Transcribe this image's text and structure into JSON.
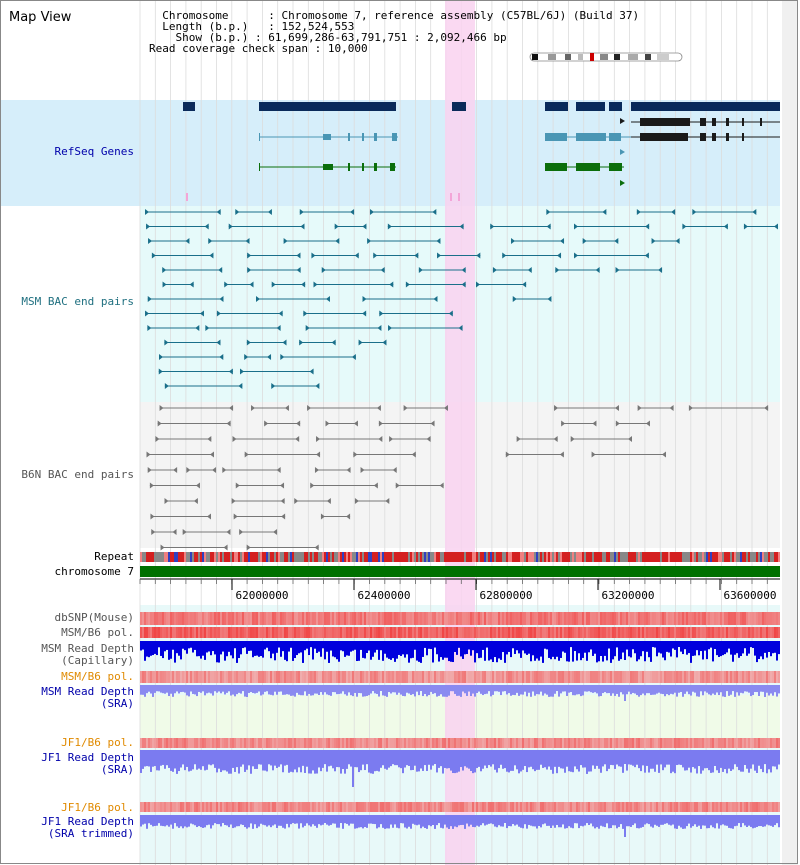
{
  "title": "Map View",
  "header": {
    "chromosome_label": "Chromosome",
    "chromosome_value": "Chromosome 7, reference assembly (C57BL/6J) (Build 37)",
    "length_label": "Length (b.p.)",
    "length_value": "152,524,553",
    "show_label": "Show (b.p.)",
    "show_value": "61,699,286-63,791,751 : 2,092,466 bp",
    "coverage_label": "Read coverage check span",
    "coverage_value": "10,000"
  },
  "tracks": {
    "refseq": "RefSeq Genes",
    "msm_bac": "MSM BAC end pairs",
    "b6n_bac": "B6N BAC end pairs",
    "repeat": "Repeat",
    "chromosome": "chromosome 7",
    "dbsnp": "dbSNP(Mouse)",
    "msm_b6_pol": "MSM/B6 pol.",
    "msm_depth_cap_1": "MSM Read Depth",
    "msm_depth_cap_2": "(Capillary)",
    "msm_b6_pol_2": "MSM/B6 pol.",
    "msm_depth_sra_1": "MSM Read Depth",
    "msm_depth_sra_2": "(SRA)",
    "jf1_b6_pol": "JF1/B6 pol.",
    "jf1_depth_sra_1": "JF1 Read Depth",
    "jf1_depth_sra_2": "(SRA)",
    "jf1_b6_pol_2": "JF1/B6 pol.",
    "jf1_depth_trim_1": "JF1 Read Depth",
    "jf1_depth_trim_2": "(SRA trimmed)"
  },
  "axis": {
    "ticks": [
      "62000000",
      "62400000",
      "62800000",
      "63200000",
      "63600000"
    ]
  },
  "colors": {
    "refseq_bg": "#d6eefa",
    "msm_bg": "#e6fafa",
    "b6n_bg": "#f2f2f2",
    "highlight": "#f9d2f0",
    "gene_dark": "#0a2a5a",
    "gene_teal": "#4a96b4",
    "gene_green": "#0b6e0b",
    "chrom_green": "#007000",
    "msm_line": "#1a6f8a",
    "b6n_line": "#777777",
    "depth_blue": "#0000dd",
    "depth_light": "#7b7bf0",
    "label_blue": "#0000aa",
    "label_teal": "#207080",
    "label_orange": "#e08a00",
    "label_gray": "#555555"
  }
}
